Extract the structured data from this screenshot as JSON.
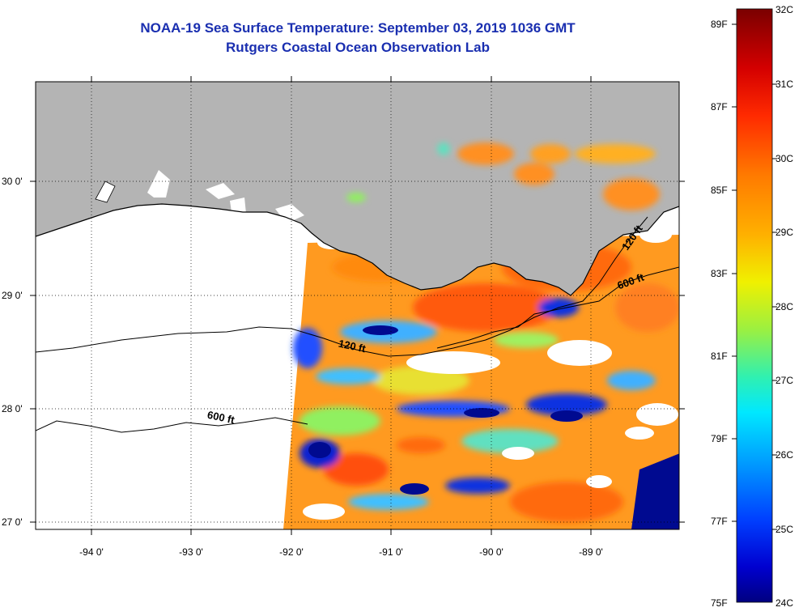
{
  "header": {
    "title_line1": "NOAA-19 Sea Surface Temperature:  September 03, 2019 1036 GMT",
    "title_line2": "Rutgers Coastal Ocean Observation Lab"
  },
  "axes": {
    "lat_labels": [
      "30 0'",
      "29 0'",
      "28 0'",
      "27 0'"
    ],
    "lon_labels": [
      "-94 0'",
      "-93 0'",
      "-92 0'",
      "-91 0'",
      "-90 0'",
      "-89 0'"
    ]
  },
  "contours": {
    "c120_west": "120 ft",
    "c600_west": "600 ft",
    "c120_east": "120 ft",
    "c600_east": "600 ft"
  },
  "colorbar": {
    "fahrenheit": [
      "89F",
      "87F",
      "85F",
      "83F",
      "81F",
      "79F",
      "77F",
      "75F"
    ],
    "celsius": [
      "32C",
      "31C",
      "30C",
      "29C",
      "28C",
      "27C",
      "26C",
      "25C",
      "24C"
    ]
  },
  "colors": {
    "land": "#b4b4b4",
    "title": "#1a2fb0"
  }
}
